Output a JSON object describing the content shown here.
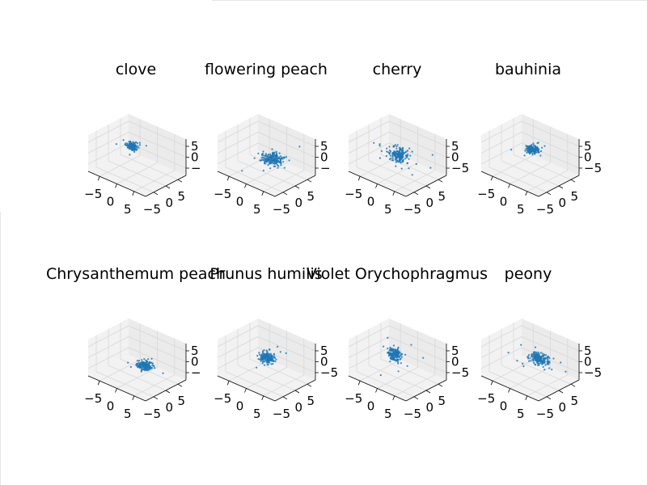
{
  "colors": {
    "points": "#1f77b4",
    "pane": "#f2f2f2",
    "pane_side": "#ebebeb",
    "grid": "#d8d8d8",
    "axis_line": "#000000"
  },
  "chart_data": [
    {
      "type": "scatter3d",
      "title": "clove",
      "xlim": [
        -8,
        8
      ],
      "ylim": [
        -8,
        8
      ],
      "zlim": [
        -6,
        6
      ],
      "xticks": [
        "−5",
        "0",
        "5"
      ],
      "yticks": [
        "−5",
        "0",
        "5"
      ],
      "zticks": [
        "5",
        "0",
        "−"
      ],
      "cluster": {
        "center": [
          -2.5,
          1.5,
          1
        ],
        "spread": [
          0.7,
          0.7,
          0.5
        ],
        "n": 120,
        "outliers": 6
      }
    },
    {
      "type": "scatter3d",
      "title": "flowering peach",
      "xlim": [
        -8,
        8
      ],
      "ylim": [
        -8,
        8
      ],
      "zlim": [
        -6,
        6
      ],
      "xticks": [
        "−5",
        "0",
        "5"
      ],
      "yticks": [
        "−5",
        "0",
        "5"
      ],
      "zticks": [
        "5",
        "0",
        "−"
      ],
      "cluster": {
        "center": [
          1.5,
          0,
          -0.5
        ],
        "spread": [
          1.2,
          1.2,
          0.7
        ],
        "n": 200,
        "outliers": 8
      }
    },
    {
      "type": "scatter3d",
      "title": "cherry",
      "xlim": [
        -8,
        8
      ],
      "ylim": [
        -8,
        8
      ],
      "zlim": [
        -6,
        6
      ],
      "xticks": [
        "−5",
        "0",
        "5"
      ],
      "yticks": [
        "−5",
        "0",
        "5"
      ],
      "zticks": [
        "5",
        "0",
        "−5"
      ],
      "cluster": {
        "center": [
          0,
          0.5,
          0
        ],
        "spread": [
          1.0,
          1.0,
          1.0
        ],
        "n": 180,
        "outliers": 14
      }
    },
    {
      "type": "scatter3d",
      "title": "bauhinia",
      "xlim": [
        -8,
        8
      ],
      "ylim": [
        -8,
        8
      ],
      "zlim": [
        -6,
        6
      ],
      "xticks": [
        "−5",
        "0",
        "5"
      ],
      "yticks": [
        "−5",
        "0",
        "5"
      ],
      "zticks": [
        "5",
        "0",
        "−5"
      ],
      "cluster": {
        "center": [
          0,
          1,
          1.5
        ],
        "spread": [
          0.8,
          0.8,
          0.6
        ],
        "n": 160,
        "outliers": 4
      }
    },
    {
      "type": "scatter3d",
      "title": "Chrysanthemum peach",
      "xlim": [
        -8,
        8
      ],
      "ylim": [
        -8,
        8
      ],
      "zlim": [
        -6,
        6
      ],
      "xticks": [
        "−5",
        "0",
        "5"
      ],
      "yticks": [
        "−5",
        "0",
        "5"
      ],
      "zticks": [
        "5",
        "0",
        "−"
      ],
      "cluster": {
        "center": [
          2,
          0,
          -1
        ],
        "spread": [
          0.9,
          0.9,
          0.6
        ],
        "n": 150,
        "outliers": 8
      }
    },
    {
      "type": "scatter3d",
      "title": "Prunus humilis",
      "xlim": [
        -8,
        8
      ],
      "ylim": [
        -8,
        8
      ],
      "zlim": [
        -6,
        6
      ],
      "xticks": [
        "−5",
        "0",
        "5"
      ],
      "yticks": [
        "−5",
        "0",
        "5"
      ],
      "zticks": [
        "5",
        "0",
        "−5"
      ],
      "cluster": {
        "center": [
          -0.5,
          1,
          0
        ],
        "spread": [
          0.9,
          0.9,
          0.7
        ],
        "n": 170,
        "outliers": 5
      }
    },
    {
      "type": "scatter3d",
      "title": "Violet Orychophragmus",
      "xlim": [
        -8,
        8
      ],
      "ylim": [
        -8,
        8
      ],
      "zlim": [
        -6,
        6
      ],
      "xticks": [
        "−5",
        "0",
        "5"
      ],
      "yticks": [
        "−5",
        "0",
        "5"
      ],
      "zticks": [
        "5",
        "0",
        "−5"
      ],
      "cluster": {
        "center": [
          -1.5,
          1,
          0.5
        ],
        "spread": [
          0.9,
          0.9,
          0.9
        ],
        "n": 170,
        "outliers": 8
      }
    },
    {
      "type": "scatter3d",
      "title": "peony",
      "xlim": [
        -8,
        8
      ],
      "ylim": [
        -8,
        8
      ],
      "zlim": [
        -6,
        6
      ],
      "xticks": [
        "−5",
        "0",
        "5"
      ],
      "yticks": [
        "−5",
        "0",
        "5"
      ],
      "zticks": [
        "5",
        "0",
        "−5"
      ],
      "cluster": {
        "center": [
          1.5,
          1.5,
          0.5
        ],
        "spread": [
          1.2,
          1.0,
          0.6
        ],
        "n": 190,
        "outliers": 10
      }
    }
  ]
}
